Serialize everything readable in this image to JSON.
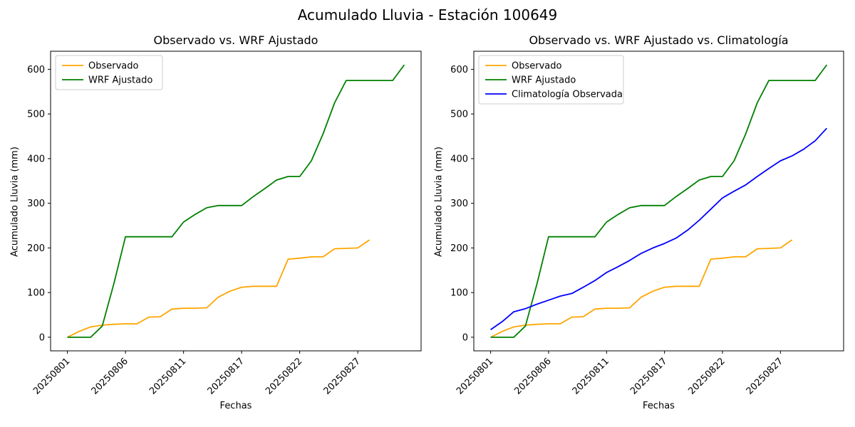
{
  "figure": {
    "title": "Acumulado Lluvia - Estación 100649",
    "background": "#ffffff",
    "text_color": "#000000",
    "spine_color": "#000000",
    "legend_border_color": "#cccccc"
  },
  "chart_data": [
    {
      "type": "line",
      "title": "Observado vs. WRF Ajustado",
      "xlabel": "Fechas",
      "ylabel": "Acumulado Lluvia (mm)",
      "grid": false,
      "legend_position": "upper left",
      "xlim": [
        -1.45,
        30.45
      ],
      "ylim": [
        -30.5,
        640.5
      ],
      "y_ticks": [
        0,
        100,
        200,
        300,
        400,
        500,
        600
      ],
      "x_tick_indices": [
        0,
        5,
        10,
        15,
        20,
        25
      ],
      "x_tick_labels": [
        "20250801",
        "20250806",
        "20250811",
        "20250817",
        "20250822",
        "20250827"
      ],
      "categories": [
        "20250801",
        "20250802",
        "20250803",
        "20250804",
        "20250805",
        "20250806",
        "20250807",
        "20250808",
        "20250809",
        "20250810",
        "20250811",
        "20250813",
        "20250814",
        "20250815",
        "20250816",
        "20250817",
        "20250818",
        "20250819",
        "20250820",
        "20250821",
        "20250822",
        "20250823",
        "20250824",
        "20250825",
        "20250826",
        "20250827",
        "20250828",
        "20250829",
        "20250830",
        "20250831"
      ],
      "series": [
        {
          "name": "Observado",
          "color": "#FFA500",
          "values": [
            0,
            13,
            23,
            27,
            29,
            30,
            30,
            45,
            46,
            63,
            65,
            65,
            66,
            90,
            103,
            112,
            114,
            114,
            114,
            175,
            177,
            180,
            180,
            198,
            199,
            200,
            218
          ]
        },
        {
          "name": "WRF Ajustado",
          "color": "#008000",
          "values": [
            0,
            0,
            0,
            25,
            120,
            225,
            225,
            225,
            225,
            225,
            258,
            275,
            290,
            295,
            295,
            295,
            315,
            333,
            352,
            360,
            360,
            395,
            455,
            525,
            575,
            575,
            575,
            575,
            575,
            610
          ]
        }
      ]
    },
    {
      "type": "line",
      "title": "Observado vs. WRF Ajustado vs. Climatología",
      "xlabel": "Fechas",
      "ylabel": "Acumulado Lluvia (mm)",
      "grid": false,
      "legend_position": "upper left",
      "xlim": [
        -1.45,
        30.45
      ],
      "ylim": [
        -30.5,
        640.5
      ],
      "y_ticks": [
        0,
        100,
        200,
        300,
        400,
        500,
        600
      ],
      "x_tick_indices": [
        0,
        5,
        10,
        15,
        20,
        25
      ],
      "x_tick_labels": [
        "20250801",
        "20250806",
        "20250811",
        "20250817",
        "20250822",
        "20250827"
      ],
      "categories": [
        "20250801",
        "20250802",
        "20250803",
        "20250804",
        "20250805",
        "20250806",
        "20250807",
        "20250808",
        "20250809",
        "20250810",
        "20250811",
        "20250813",
        "20250814",
        "20250815",
        "20250816",
        "20250817",
        "20250818",
        "20250819",
        "20250820",
        "20250821",
        "20250822",
        "20250823",
        "20250824",
        "20250825",
        "20250826",
        "20250827",
        "20250828",
        "20250829",
        "20250830",
        "20250831"
      ],
      "series": [
        {
          "name": "Observado",
          "color": "#FFA500",
          "values": [
            0,
            13,
            23,
            27,
            29,
            30,
            30,
            45,
            46,
            63,
            65,
            65,
            66,
            90,
            103,
            112,
            114,
            114,
            114,
            175,
            177,
            180,
            180,
            198,
            199,
            200,
            218
          ]
        },
        {
          "name": "WRF Ajustado",
          "color": "#008000",
          "values": [
            0,
            0,
            0,
            25,
            120,
            225,
            225,
            225,
            225,
            225,
            258,
            275,
            290,
            295,
            295,
            295,
            315,
            333,
            352,
            360,
            360,
            395,
            455,
            525,
            575,
            575,
            575,
            575,
            575,
            610
          ]
        },
        {
          "name": "Climatología Observada",
          "color": "#0000FF",
          "values": [
            17,
            35,
            57,
            64,
            74,
            83,
            92,
            98,
            112,
            127,
            145,
            158,
            172,
            188,
            200,
            210,
            222,
            240,
            262,
            287,
            312,
            327,
            341,
            360,
            378,
            395,
            406,
            421,
            440,
            468
          ]
        }
      ]
    }
  ]
}
